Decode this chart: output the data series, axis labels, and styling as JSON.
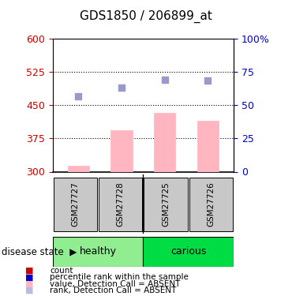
{
  "title": "GDS1850 / 206899_at",
  "samples": [
    "GSM27727",
    "GSM27728",
    "GSM27725",
    "GSM27726"
  ],
  "groups": [
    "healthy",
    "healthy",
    "carious",
    "carious"
  ],
  "group_colors": {
    "healthy": "#90EE90",
    "carious": "#00CC00"
  },
  "bar_values": [
    313,
    393,
    432,
    415
  ],
  "bar_color": "#FFB6C1",
  "bar_base": 300,
  "dot_values": [
    470,
    490,
    508,
    505
  ],
  "dot_color": "#9999CC",
  "ylim_left": [
    300,
    600
  ],
  "ylim_right": [
    0,
    100
  ],
  "yticks_left": [
    300,
    375,
    450,
    525,
    600
  ],
  "yticks_right": [
    0,
    25,
    50,
    75,
    100
  ],
  "hlines": [
    375,
    450,
    525
  ],
  "left_tick_color": "#CC0000",
  "right_tick_color": "#0000CC",
  "legend_items": [
    {
      "color": "#CC0000",
      "marker": "s",
      "label": "count"
    },
    {
      "color": "#0000CC",
      "marker": "s",
      "label": "percentile rank within the sample"
    },
    {
      "color": "#FFB6C1",
      "marker": "s",
      "label": "value, Detection Call = ABSENT"
    },
    {
      "color": "#BBBBDD",
      "marker": "s",
      "label": "rank, Detection Call = ABSENT"
    }
  ],
  "disease_state_label": "disease state",
  "group_label_healthy": "healthy",
  "group_label_carious": "carious"
}
